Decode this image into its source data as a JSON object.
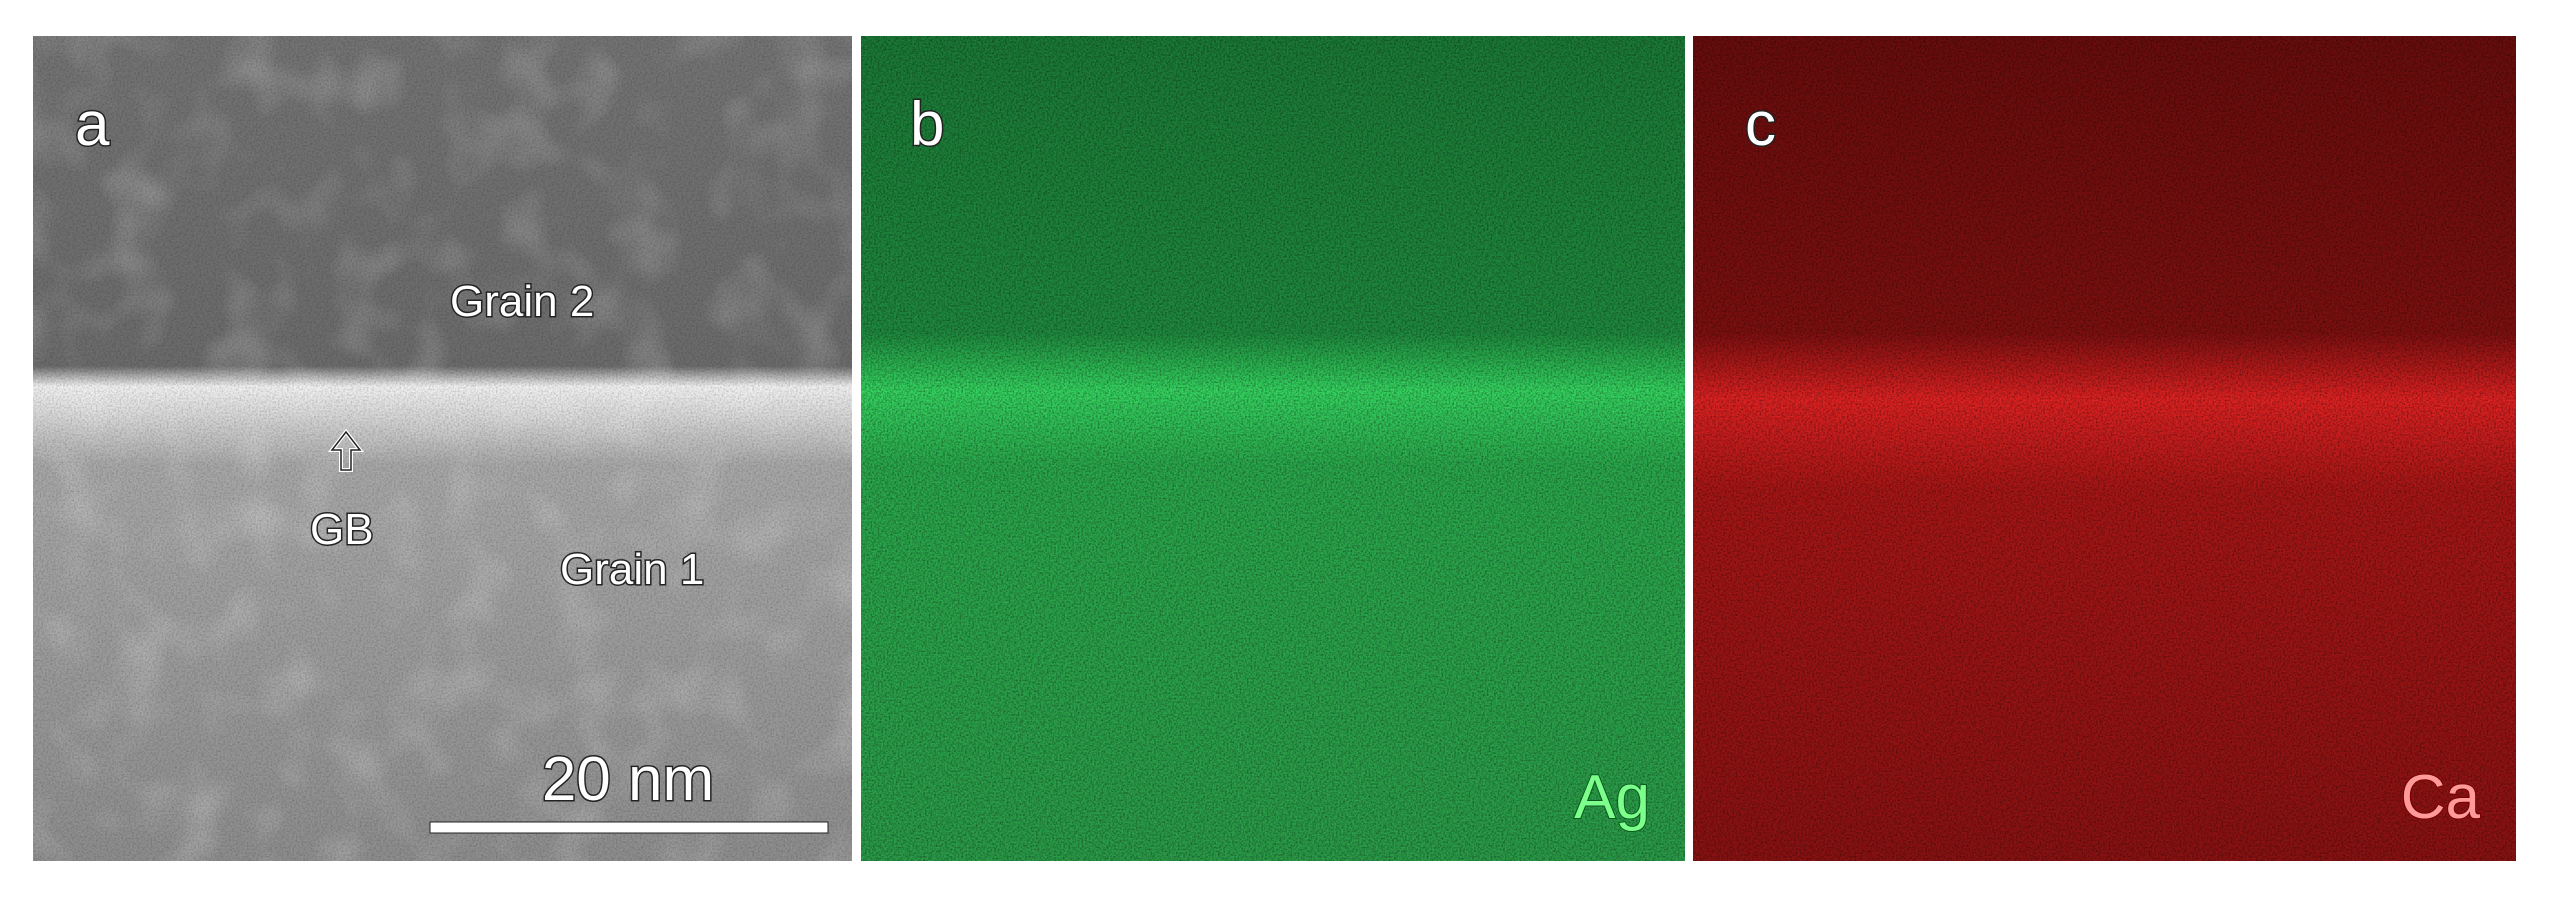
{
  "figure": {
    "panels": [
      {
        "label": "a",
        "annotations": {
          "grain_2": "Grain 2",
          "gb": "GB",
          "grain_1": "Grain 1"
        },
        "scale_bar": "20 nm"
      },
      {
        "label": "b",
        "element": "Ag"
      },
      {
        "label": "c",
        "element": "Ca"
      }
    ]
  }
}
